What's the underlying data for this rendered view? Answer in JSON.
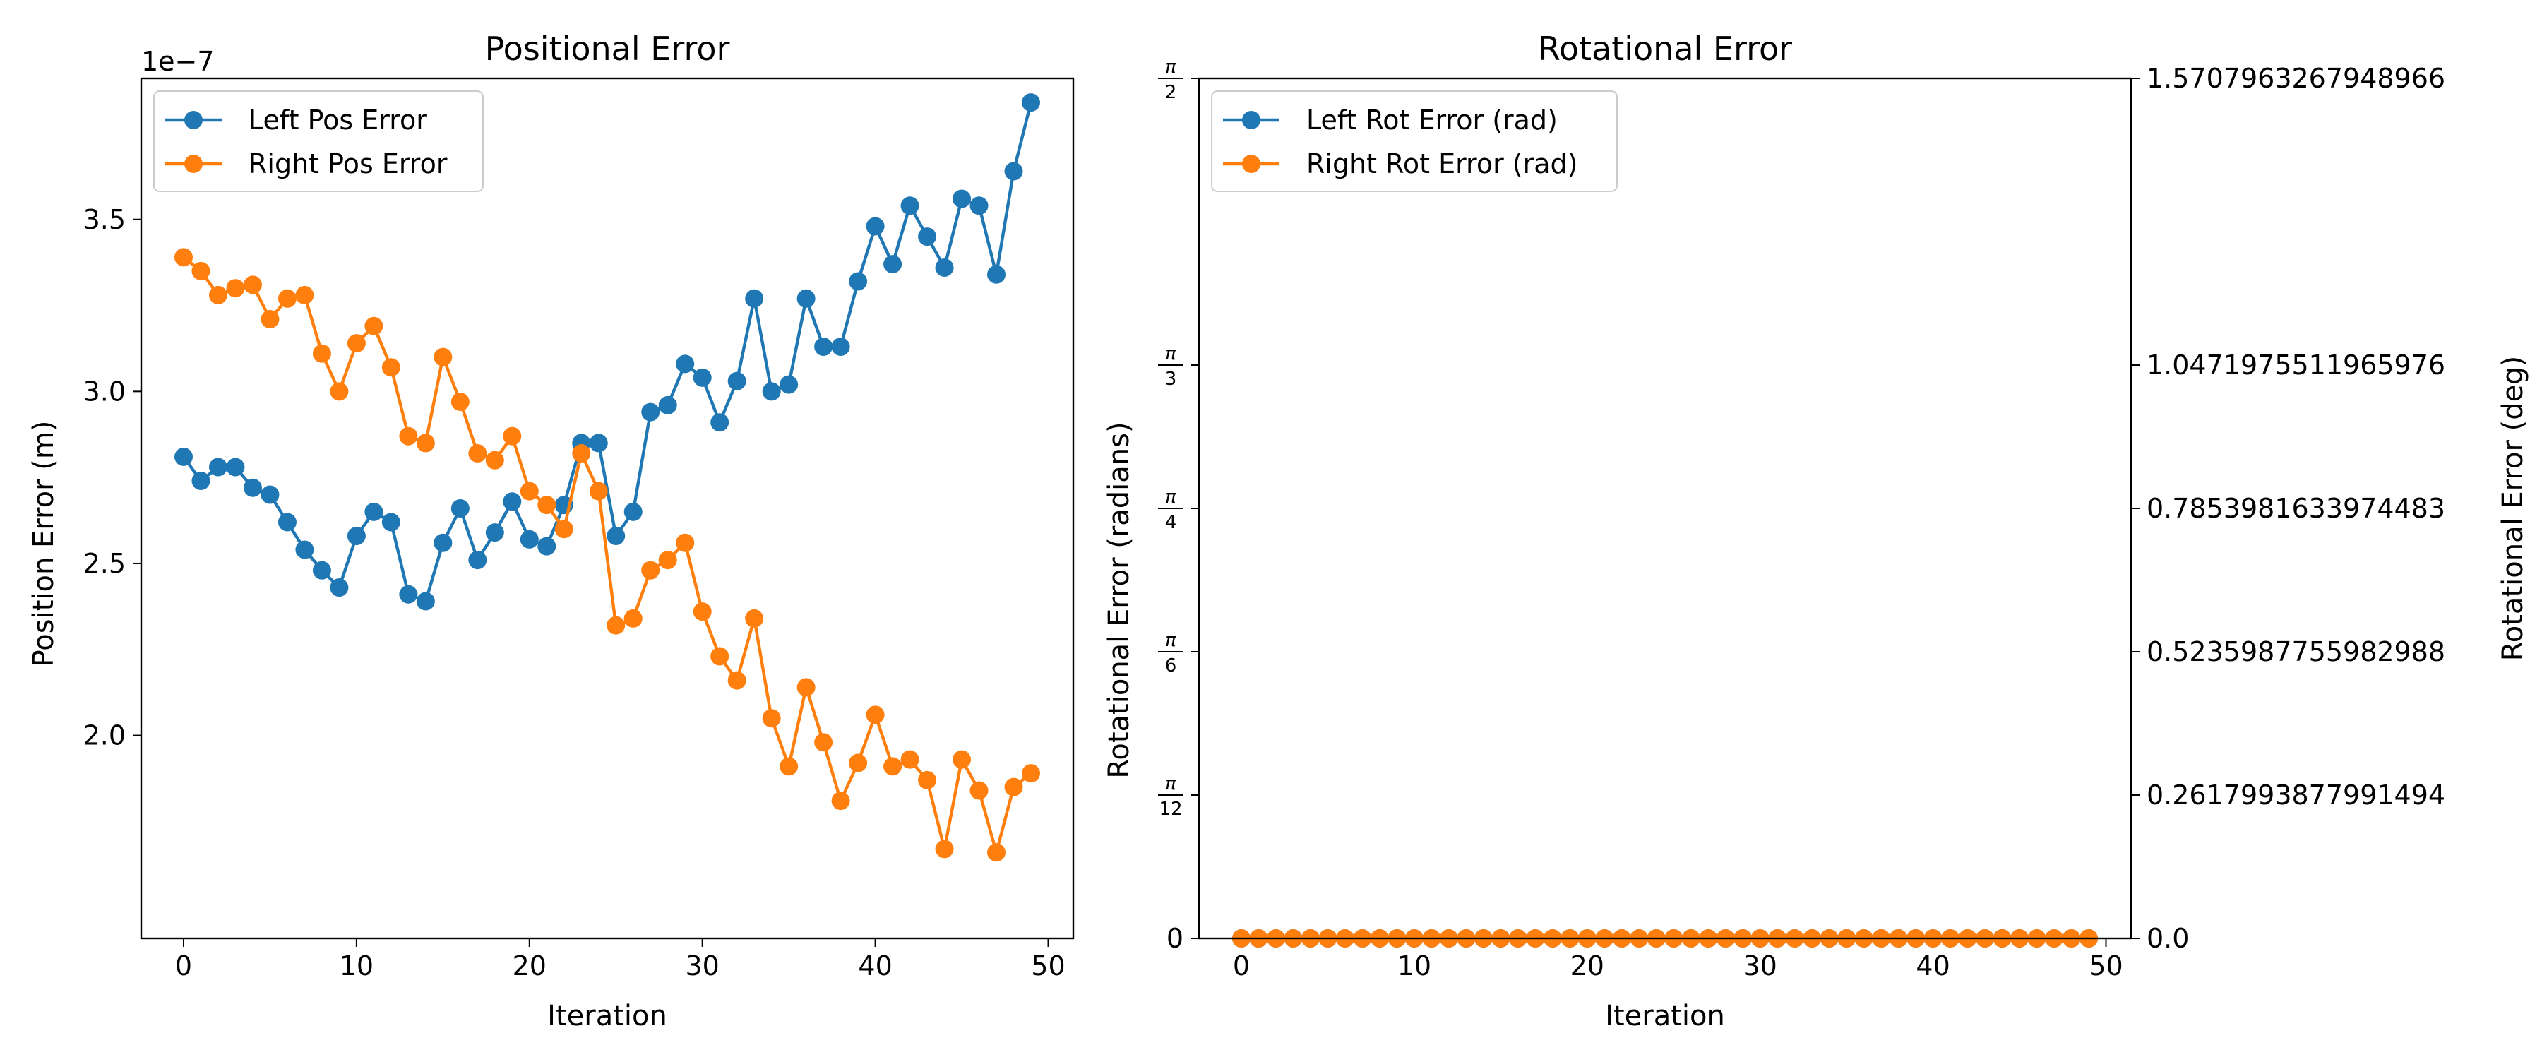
{
  "chart_data": [
    {
      "type": "line",
      "title": "Positional Error",
      "xlabel": "Iteration",
      "ylabel": "Position Error (m)",
      "offset_text": "1e−7",
      "xlim": [
        -2.45,
        51.45
      ],
      "ylim": [
        1.41,
        3.91
      ],
      "x_ticks": [
        0,
        10,
        20,
        30,
        40,
        50
      ],
      "x_tick_labels": [
        "0",
        "10",
        "20",
        "30",
        "40",
        "50"
      ],
      "y_ticks": [
        2.0,
        2.5,
        3.0,
        3.5
      ],
      "y_tick_labels": [
        "2.0",
        "2.5",
        "3.0",
        "3.5"
      ],
      "legend_position": "upper-left",
      "x": [
        0,
        1,
        2,
        3,
        4,
        5,
        6,
        7,
        8,
        9,
        10,
        11,
        12,
        13,
        14,
        15,
        16,
        17,
        18,
        19,
        20,
        21,
        22,
        23,
        24,
        25,
        26,
        27,
        28,
        29,
        30,
        31,
        32,
        33,
        34,
        35,
        36,
        37,
        38,
        39,
        40,
        41,
        42,
        43,
        44,
        45,
        46,
        47,
        48,
        49
      ],
      "series": [
        {
          "name": "Left Pos Error",
          "color": "#1f77b4",
          "values": [
            2.81,
            2.74,
            2.78,
            2.78,
            2.72,
            2.7,
            2.62,
            2.54,
            2.48,
            2.43,
            2.58,
            2.65,
            2.62,
            2.41,
            2.39,
            2.56,
            2.66,
            2.51,
            2.59,
            2.68,
            2.57,
            2.55,
            2.67,
            2.85,
            2.85,
            2.58,
            2.65,
            2.94,
            2.96,
            3.08,
            3.04,
            2.91,
            3.03,
            3.27,
            3.0,
            3.02,
            3.27,
            3.13,
            3.13,
            3.32,
            3.48,
            3.37,
            3.54,
            3.45,
            3.36,
            3.56,
            3.54,
            3.34,
            3.64,
            3.84
          ]
        },
        {
          "name": "Right Pos Error",
          "color": "#ff7f0e",
          "values": [
            3.39,
            3.35,
            3.28,
            3.3,
            3.31,
            3.21,
            3.27,
            3.28,
            3.11,
            3.0,
            3.14,
            3.19,
            3.07,
            2.87,
            2.85,
            3.1,
            2.97,
            2.82,
            2.8,
            2.87,
            2.71,
            2.67,
            2.6,
            2.82,
            2.71,
            2.32,
            2.34,
            2.48,
            2.51,
            2.56,
            2.36,
            2.23,
            2.16,
            2.34,
            2.05,
            1.91,
            2.14,
            1.98,
            1.81,
            1.92,
            2.06,
            1.91,
            1.93,
            1.87,
            1.67,
            1.93,
            1.84,
            1.66,
            1.85,
            1.89
          ]
        }
      ]
    },
    {
      "type": "line",
      "title": "Rotational Error",
      "xlabel": "Iteration",
      "ylabel": "Rotational Error (radians)",
      "ylabel_right": "Rotational Error (deg)",
      "xlim": [
        -2.45,
        51.45
      ],
      "ylim": [
        0,
        1.5707963267948966
      ],
      "x_ticks": [
        0,
        10,
        20,
        30,
        40,
        50
      ],
      "x_tick_labels": [
        "0",
        "10",
        "20",
        "30",
        "40",
        "50"
      ],
      "y_ticks": [
        0,
        0.2617993877991494,
        0.5235987755982988,
        0.7853981633974483,
        1.0471975511965976,
        1.5707963267948966
      ],
      "y_tick_labels_left": [
        {
          "type": "zero",
          "text": "0"
        },
        {
          "type": "frac",
          "num": "π",
          "den": "12"
        },
        {
          "type": "frac",
          "num": "π",
          "den": "6"
        },
        {
          "type": "frac",
          "num": "π",
          "den": "4"
        },
        {
          "type": "frac",
          "num": "π",
          "den": "3"
        },
        {
          "type": "frac",
          "num": "π",
          "den": "2"
        }
      ],
      "y_tick_labels_right": [
        "0.0",
        "0.2617993877991494",
        "0.5235987755982988",
        "0.7853981633974483",
        "1.0471975511965976",
        "1.5707963267948966"
      ],
      "legend_position": "upper-left",
      "x": [
        0,
        1,
        2,
        3,
        4,
        5,
        6,
        7,
        8,
        9,
        10,
        11,
        12,
        13,
        14,
        15,
        16,
        17,
        18,
        19,
        20,
        21,
        22,
        23,
        24,
        25,
        26,
        27,
        28,
        29,
        30,
        31,
        32,
        33,
        34,
        35,
        36,
        37,
        38,
        39,
        40,
        41,
        42,
        43,
        44,
        45,
        46,
        47,
        48,
        49
      ],
      "series": [
        {
          "name": "Left Rot Error (rad)",
          "color": "#1f77b4",
          "values": [
            0,
            0,
            0,
            0,
            0,
            0,
            0,
            0,
            0,
            0,
            0,
            0,
            0,
            0,
            0,
            0,
            0,
            0,
            0,
            0,
            0,
            0,
            0,
            0,
            0,
            0,
            0,
            0,
            0,
            0,
            0,
            0,
            0,
            0,
            0,
            0,
            0,
            0,
            0,
            0,
            0,
            0,
            0,
            0,
            0,
            0,
            0,
            0,
            0,
            0
          ]
        },
        {
          "name": "Right Rot Error (rad)",
          "color": "#ff7f0e",
          "values": [
            0,
            0,
            0,
            0,
            0,
            0,
            0,
            0,
            0,
            0,
            0,
            0,
            0,
            0,
            0,
            0,
            0,
            0,
            0,
            0,
            0,
            0,
            0,
            0,
            0,
            0,
            0,
            0,
            0,
            0,
            0,
            0,
            0,
            0,
            0,
            0,
            0,
            0,
            0,
            0,
            0,
            0,
            0,
            0,
            0,
            0,
            0,
            0,
            0,
            0
          ]
        }
      ]
    }
  ]
}
